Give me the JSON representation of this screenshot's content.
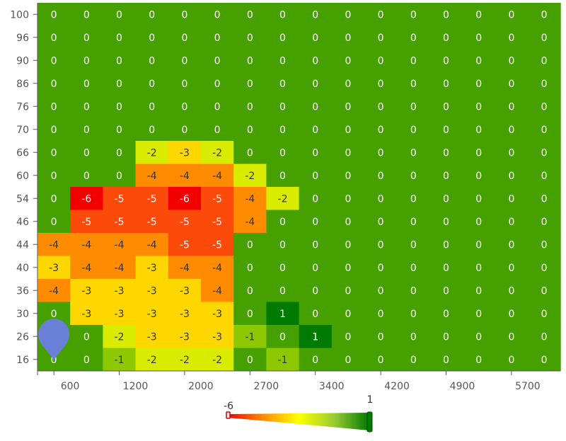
{
  "chart_data": {
    "type": "heatmap",
    "x_tick_labels": [
      "600",
      "1200",
      "2000",
      "2700",
      "3400",
      "4200",
      "4900",
      "5700"
    ],
    "y_categories": [
      "100",
      "96",
      "90",
      "86",
      "76",
      "70",
      "66",
      "60",
      "54",
      "46",
      "44",
      "40",
      "36",
      "30",
      "26",
      "16"
    ],
    "n_columns": 16,
    "values": [
      [
        0,
        0,
        0,
        0,
        0,
        0,
        0,
        0,
        0,
        0,
        0,
        0,
        0,
        0,
        0,
        0
      ],
      [
        0,
        0,
        0,
        0,
        0,
        0,
        0,
        0,
        0,
        0,
        0,
        0,
        0,
        0,
        0,
        0
      ],
      [
        0,
        0,
        0,
        0,
        0,
        0,
        0,
        0,
        0,
        0,
        0,
        0,
        0,
        0,
        0,
        0
      ],
      [
        0,
        0,
        0,
        0,
        0,
        0,
        0,
        0,
        0,
        0,
        0,
        0,
        0,
        0,
        0,
        0
      ],
      [
        0,
        0,
        0,
        0,
        0,
        0,
        0,
        0,
        0,
        0,
        0,
        0,
        0,
        0,
        0,
        0
      ],
      [
        0,
        0,
        0,
        0,
        0,
        0,
        0,
        0,
        0,
        0,
        0,
        0,
        0,
        0,
        0,
        0
      ],
      [
        0,
        0,
        0,
        -2,
        -3,
        -2,
        0,
        0,
        0,
        0,
        0,
        0,
        0,
        0,
        0,
        0
      ],
      [
        0,
        0,
        0,
        -4,
        -4,
        -4,
        -2,
        0,
        0,
        0,
        0,
        0,
        0,
        0,
        0,
        0
      ],
      [
        0,
        -6,
        -5,
        -5,
        -6,
        -5,
        -4,
        -2,
        0,
        0,
        0,
        0,
        0,
        0,
        0,
        0
      ],
      [
        0,
        -5,
        -5,
        -5,
        -5,
        -5,
        -4,
        0,
        0,
        0,
        0,
        0,
        0,
        0,
        0,
        0
      ],
      [
        -4,
        -4,
        -4,
        -4,
        -5,
        -5,
        0,
        0,
        0,
        0,
        0,
        0,
        0,
        0,
        0,
        0
      ],
      [
        -3,
        -4,
        -4,
        -3,
        -4,
        -4,
        0,
        0,
        0,
        0,
        0,
        0,
        0,
        0,
        0,
        0
      ],
      [
        -4,
        -3,
        -3,
        -3,
        -3,
        -4,
        0,
        0,
        0,
        0,
        0,
        0,
        0,
        0,
        0,
        0
      ],
      [
        0,
        -3,
        -3,
        -3,
        -3,
        -3,
        0,
        1,
        0,
        0,
        0,
        0,
        0,
        0,
        0,
        0
      ],
      [
        0,
        0,
        -2,
        -3,
        -3,
        -3,
        -1,
        0,
        1,
        0,
        0,
        0,
        0,
        0,
        0,
        0
      ],
      [
        0,
        0,
        -1,
        -2,
        -2,
        -2,
        0,
        -1,
        0,
        0,
        0,
        0,
        0,
        0,
        0,
        0
      ]
    ],
    "color_scale": {
      "min": -6,
      "max": 1,
      "min_label": "-6",
      "max_label": "1",
      "colors": {
        "-6": "#f20000",
        "-5": "#fb4a0a",
        "-4": "#ff8c00",
        "-3": "#ffd700",
        "-2": "#d9ec00",
        "-1": "#8ec800",
        "0": "#45a000",
        "1": "#007a00"
      }
    },
    "label_colors": {
      "dark": "#333333",
      "light": "#ffffff"
    },
    "marker": {
      "icon": "map-pin-icon",
      "color": "#6a7fd6",
      "row": "26",
      "column": 0
    }
  }
}
